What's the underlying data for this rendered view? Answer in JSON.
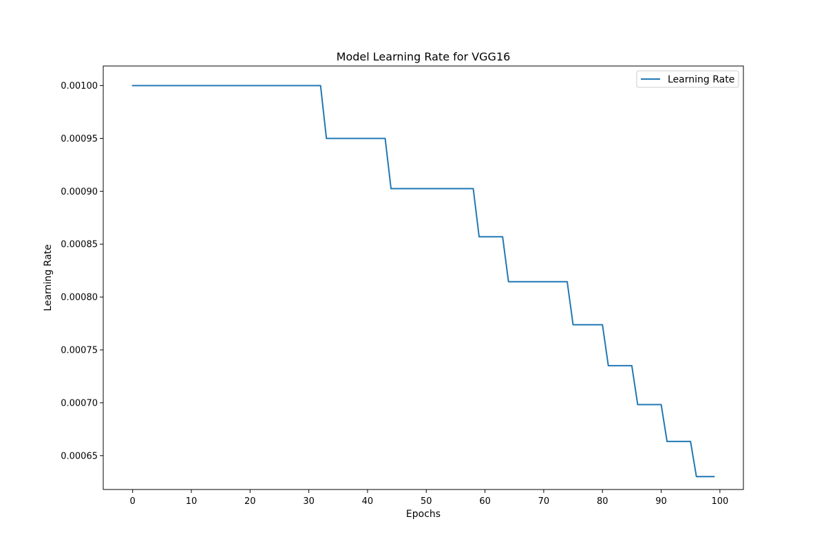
{
  "chart_data": {
    "type": "line",
    "title": "Model Learning Rate for VGG16",
    "xlabel": "Epochs",
    "ylabel": "Learning Rate",
    "xlim": [
      -5,
      104
    ],
    "ylim": [
      0.000618,
      0.0010185
    ],
    "xticks": [
      0,
      10,
      20,
      30,
      40,
      50,
      60,
      70,
      80,
      90,
      100
    ],
    "xtick_labels": [
      "0",
      "10",
      "20",
      "30",
      "40",
      "50",
      "60",
      "70",
      "80",
      "90",
      "100"
    ],
    "yticks": [
      0.00065,
      0.0007,
      0.00075,
      0.0008,
      0.00085,
      0.0009,
      0.00095,
      0.001
    ],
    "ytick_labels": [
      "0.00065",
      "0.00070",
      "0.00075",
      "0.00080",
      "0.00085",
      "0.00090",
      "0.00095",
      "0.00100"
    ],
    "grid": false,
    "legend_position": "top-right",
    "series": [
      {
        "name": "Learning Rate",
        "color": "#1f77b4",
        "x": [
          0,
          32,
          33,
          43,
          44,
          58,
          59,
          63,
          64,
          74,
          75,
          80,
          81,
          85,
          86,
          90,
          91,
          95,
          96,
          99
        ],
        "y": [
          0.001,
          0.001,
          0.00095,
          0.00095,
          0.0009025,
          0.0009025,
          0.000857,
          0.000857,
          0.0008145,
          0.0008145,
          0.0007738,
          0.0007738,
          0.0007351,
          0.0007351,
          0.0006983,
          0.0006983,
          0.0006634,
          0.0006634,
          0.0006302,
          0.0006302
        ]
      }
    ]
  }
}
